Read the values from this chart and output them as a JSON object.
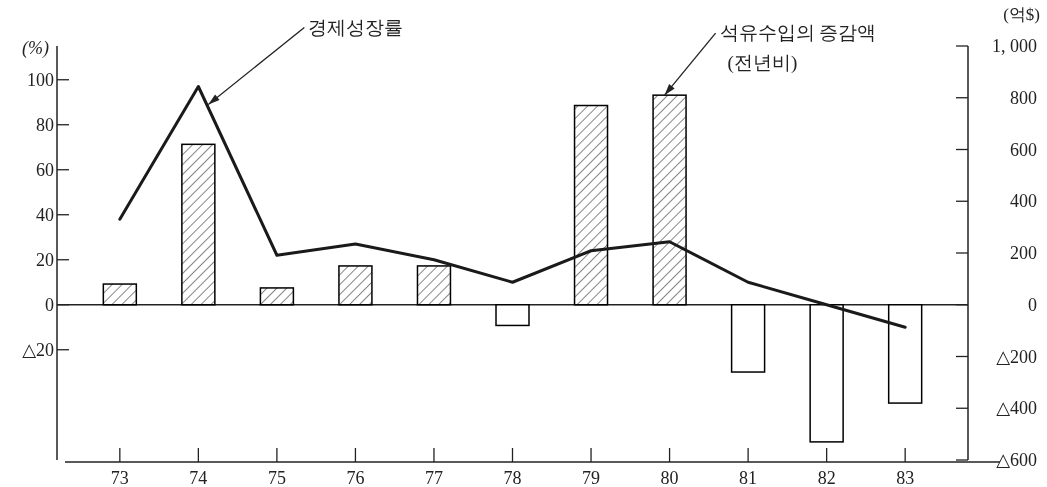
{
  "chart_data": {
    "type": "bar",
    "categories": [
      "73",
      "74",
      "75",
      "76",
      "77",
      "78",
      "79",
      "80",
      "81",
      "82",
      "83"
    ],
    "series": [
      {
        "name": "경제성장률",
        "type": "line",
        "color": "#1a1a1a",
        "values": [
          38,
          97,
          22,
          27,
          20,
          10,
          24,
          28,
          10,
          0,
          -10
        ]
      },
      {
        "name": "석유수입의 증감액 (전년비)",
        "axis": "y2",
        "color": "#000000",
        "values": [
          80,
          620,
          65,
          150,
          150,
          -80,
          770,
          810,
          -260,
          -530,
          -380
        ]
      }
    ],
    "ylabel": "(%)",
    "y2label": "(억$)",
    "ylim": [
      -69,
      115
    ],
    "yticks": [
      {
        "value": -20,
        "label": "△20"
      },
      {
        "value": 0,
        "label": "0"
      },
      {
        "value": 20,
        "label": "20"
      },
      {
        "value": 40,
        "label": "40"
      },
      {
        "value": 60,
        "label": "60"
      },
      {
        "value": 80,
        "label": "80"
      },
      {
        "value": 100,
        "label": "100"
      }
    ],
    "y2lim": [
      -600,
      1000
    ],
    "y2ticks": [
      {
        "value": -600,
        "label": "△600"
      },
      {
        "value": -400,
        "label": "△400"
      },
      {
        "value": -200,
        "label": "△200"
      },
      {
        "value": 0,
        "label": "0"
      },
      {
        "value": 200,
        "label": "200"
      },
      {
        "value": 400,
        "label": "400"
      },
      {
        "value": 600,
        "label": "600"
      },
      {
        "value": 800,
        "label": "800"
      },
      {
        "value": 1000,
        "label": "1, 000"
      }
    ],
    "ref_lines": [
      {
        "axis": "y",
        "value": 0
      }
    ],
    "grid": false,
    "legend": false,
    "marker": "none",
    "line_style": "solid"
  }
}
